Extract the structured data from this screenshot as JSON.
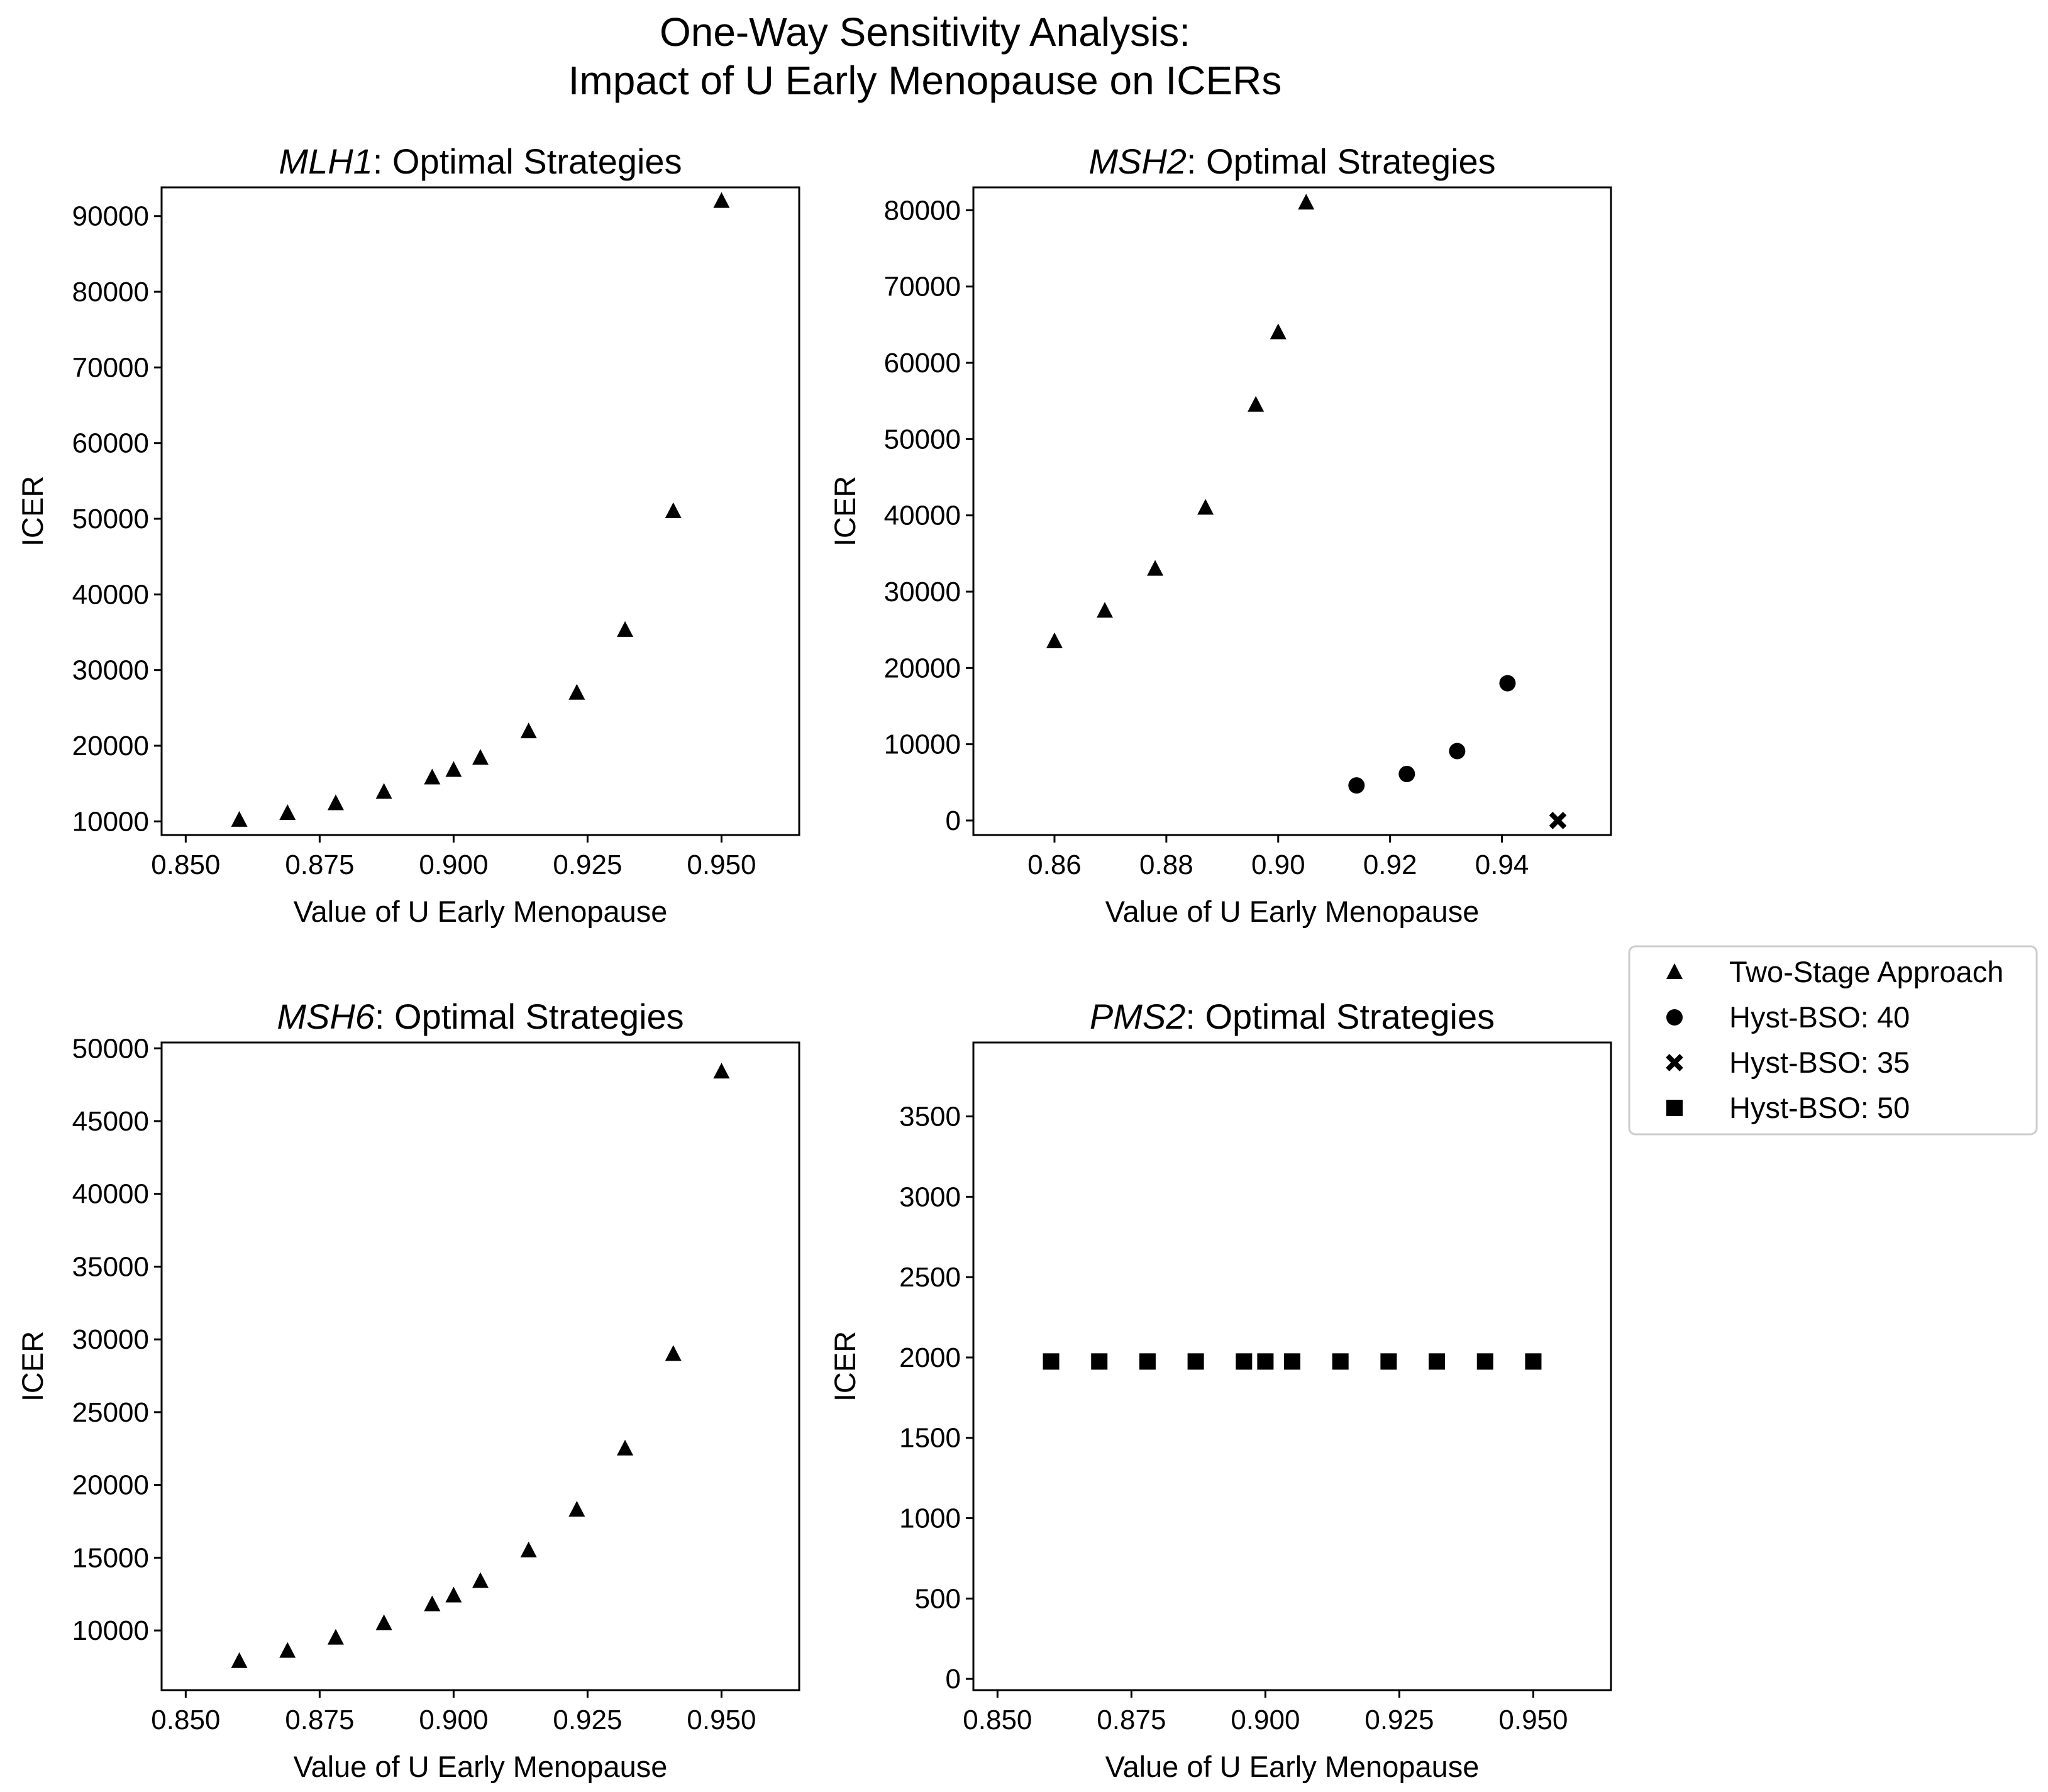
{
  "figure": {
    "title_line1": "One-Way Sensitivity Analysis:",
    "title_line2": "Impact of U Early Menopause on ICERs"
  },
  "legend": {
    "entries": [
      {
        "label": "Two-Stage Approach",
        "marker": "triangle"
      },
      {
        "label": "Hyst-BSO: 40",
        "marker": "circle"
      },
      {
        "label": "Hyst-BSO: 35",
        "marker": "x-cross"
      },
      {
        "label": "Hyst-BSO: 50",
        "marker": "square"
      }
    ]
  },
  "chart_data": [
    {
      "type": "scatter",
      "title_gene": "MLH1",
      "title_rest": ": Optimal Strategies",
      "xlabel": "Value of U Early Menopause",
      "ylabel": "ICER",
      "xlim": [
        0.8455,
        0.9645
      ],
      "ylim": [
        8200,
        93800
      ],
      "xticks": [
        0.85,
        0.875,
        0.9,
        0.925,
        0.95
      ],
      "xtick_labels": [
        "0.850",
        "0.875",
        "0.900",
        "0.925",
        "0.950"
      ],
      "yticks": [
        10000,
        20000,
        30000,
        40000,
        50000,
        60000,
        70000,
        80000,
        90000
      ],
      "yticklabels": [
        "10000",
        "20000",
        "30000",
        "40000",
        "50000",
        "60000",
        "70000",
        "80000",
        "90000"
      ],
      "series": [
        {
          "name": "Two-Stage Approach",
          "marker": "triangle",
          "x": [
            0.86,
            0.869,
            0.878,
            0.887,
            0.896,
            0.9,
            0.905,
            0.914,
            0.923,
            0.932,
            0.941,
            0.95
          ],
          "y": [
            10200,
            11100,
            12400,
            13900,
            15800,
            16800,
            18400,
            21900,
            27000,
            35300,
            51000,
            92000
          ]
        }
      ]
    },
    {
      "type": "scatter",
      "title_gene": "MSH2",
      "title_rest": ": Optimal Strategies",
      "xlabel": "Value of U Early Menopause",
      "ylabel": "ICER",
      "xlim": [
        0.8455,
        0.9595
      ],
      "ylim": [
        -1900,
        83000
      ],
      "xticks": [
        0.86,
        0.88,
        0.9,
        0.92,
        0.94
      ],
      "xtick_labels": [
        "0.86",
        "0.88",
        "0.90",
        "0.92",
        "0.94"
      ],
      "yticks": [
        0,
        10000,
        20000,
        30000,
        40000,
        50000,
        60000,
        70000,
        80000
      ],
      "yticklabels": [
        "0",
        "10000",
        "20000",
        "30000",
        "40000",
        "50000",
        "60000",
        "70000",
        "80000"
      ],
      "series": [
        {
          "name": "Two-Stage Approach",
          "marker": "triangle",
          "x": [
            0.86,
            0.869,
            0.878,
            0.887,
            0.896,
            0.9,
            0.905
          ],
          "y": [
            23500,
            27500,
            33000,
            41000,
            54500,
            64000,
            81000
          ]
        },
        {
          "name": "Hyst-BSO: 40",
          "marker": "circle",
          "x": [
            0.914,
            0.923,
            0.932,
            0.941
          ],
          "y": [
            4600,
            6100,
            9100,
            18000
          ]
        },
        {
          "name": "Hyst-BSO: 35",
          "marker": "x-cross",
          "x": [
            0.95
          ],
          "y": [
            0
          ]
        }
      ]
    },
    {
      "type": "scatter",
      "title_gene": "MSH6",
      "title_rest": ": Optimal Strategies",
      "xlabel": "Value of U Early Menopause",
      "ylabel": "ICER",
      "xlim": [
        0.8455,
        0.9645
      ],
      "ylim": [
        5900,
        50400
      ],
      "xticks": [
        0.85,
        0.875,
        0.9,
        0.925,
        0.95
      ],
      "xtick_labels": [
        "0.850",
        "0.875",
        "0.900",
        "0.925",
        "0.950"
      ],
      "yticks": [
        10000,
        15000,
        20000,
        25000,
        30000,
        35000,
        40000,
        45000,
        50000
      ],
      "yticklabels": [
        "10000",
        "15000",
        "20000",
        "25000",
        "30000",
        "35000",
        "40000",
        "45000",
        "50000"
      ],
      "series": [
        {
          "name": "Two-Stage Approach",
          "marker": "triangle",
          "x": [
            0.86,
            0.869,
            0.878,
            0.887,
            0.896,
            0.9,
            0.905,
            0.914,
            0.923,
            0.932,
            0.941,
            0.95
          ],
          "y": [
            7900,
            8600,
            9500,
            10500,
            11800,
            12400,
            13400,
            15500,
            18300,
            22500,
            29000,
            48400
          ]
        }
      ]
    },
    {
      "type": "scatter",
      "title_gene": "PMS2",
      "title_rest": ": Optimal Strategies",
      "xlabel": "Value of U Early Menopause",
      "ylabel": "ICER",
      "xlim": [
        0.8455,
        0.9645
      ],
      "ylim": [
        -70,
        3960
      ],
      "xticks": [
        0.85,
        0.875,
        0.9,
        0.925,
        0.95
      ],
      "xtick_labels": [
        "0.850",
        "0.875",
        "0.900",
        "0.925",
        "0.950"
      ],
      "yticks": [
        0,
        500,
        1000,
        1500,
        2000,
        2500,
        3000,
        3500
      ],
      "yticklabels": [
        "0",
        "500",
        "1000",
        "1500",
        "2000",
        "2500",
        "3000",
        "3500"
      ],
      "series": [
        {
          "name": "Hyst-BSO: 50",
          "marker": "square",
          "x": [
            0.86,
            0.869,
            0.878,
            0.887,
            0.896,
            0.9,
            0.905,
            0.914,
            0.923,
            0.932,
            0.941,
            0.95
          ],
          "y": [
            1975,
            1975,
            1975,
            1975,
            1975,
            1975,
            1975,
            1975,
            1975,
            1975,
            1975,
            1975
          ]
        }
      ]
    }
  ]
}
